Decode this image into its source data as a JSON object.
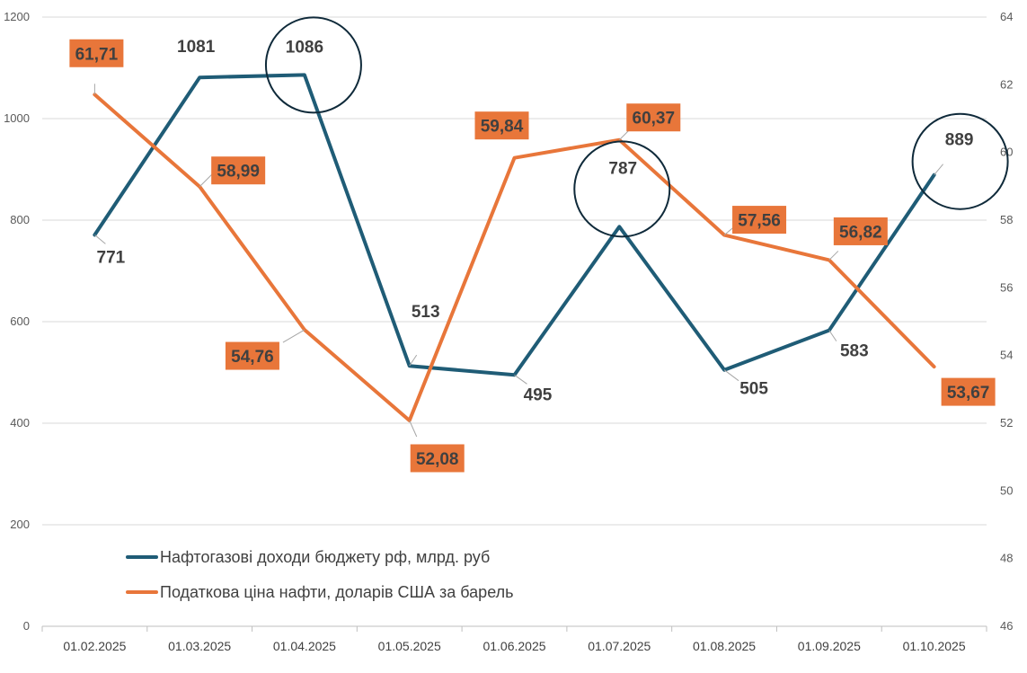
{
  "chart_data": {
    "type": "line",
    "categories": [
      "01.02.2025",
      "01.03.2025",
      "01.04.2025",
      "01.05.2025",
      "01.06.2025",
      "01.07.2025",
      "01.08.2025",
      "01.09.2025",
      "01.10.2025"
    ],
    "series": [
      {
        "name": "Нафтогазові доходи бюджету рф, млрд. руб",
        "axis": "left",
        "color": "#1f5c76",
        "values": [
          771,
          1081,
          1086,
          513,
          495,
          787,
          505,
          583,
          889
        ],
        "labels": [
          "771",
          "1081",
          "1086",
          "513",
          "495",
          "787",
          "505",
          "583",
          "889"
        ],
        "circled": [
          2,
          5,
          8
        ]
      },
      {
        "name": "Податкова ціна нафти, доларів США за барель",
        "axis": "right",
        "color": "#e8763a",
        "values": [
          61.71,
          58.99,
          54.76,
          52.08,
          59.84,
          60.37,
          57.56,
          56.82,
          53.67
        ],
        "labels": [
          "61,71",
          "58,99",
          "54,76",
          "52,08",
          "59,84",
          "60,37",
          "57,56",
          "56,82",
          "53,67"
        ]
      }
    ],
    "y_left": {
      "lim": [
        0,
        1200
      ],
      "ticks": [
        "0",
        "200",
        "400",
        "600",
        "800",
        "1000",
        "1200"
      ]
    },
    "y_right": {
      "lim": [
        46,
        64
      ],
      "ticks": [
        "46",
        "48",
        "50",
        "52",
        "54",
        "56",
        "58",
        "60",
        "62",
        "64"
      ]
    },
    "grid": true,
    "legend_position": "bottom-left",
    "title": "",
    "xlabel": "",
    "ylabel": ""
  }
}
